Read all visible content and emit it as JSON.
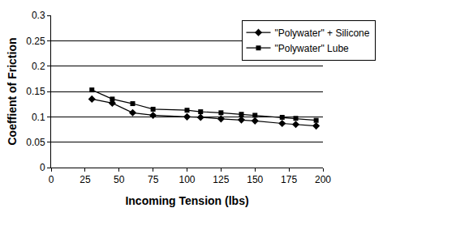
{
  "chart_data": {
    "type": "line",
    "x_label": "Incoming Tension (lbs)",
    "y_label": "Coeffient of Friction",
    "x": [
      30,
      45,
      60,
      75,
      100,
      110,
      125,
      140,
      150,
      170,
      180,
      195
    ],
    "series": [
      {
        "name": "\"Polywater\" + Silicone",
        "color": "#000000",
        "marker": "diamond",
        "line_style": "solid",
        "values": [
          0.135,
          0.127,
          0.108,
          0.103,
          0.1,
          0.099,
          0.096,
          0.094,
          0.092,
          0.087,
          0.085,
          0.082
        ]
      },
      {
        "name": "\"Polywater\" Lube",
        "color": "#000000",
        "marker": "square",
        "line_style": "solid",
        "values": [
          0.153,
          0.135,
          0.126,
          0.115,
          0.113,
          0.11,
          0.108,
          0.105,
          0.103,
          0.099,
          0.097,
          0.093
        ]
      }
    ],
    "xlim": [
      0,
      200
    ],
    "xticks": [
      0,
      25,
      50,
      75,
      100,
      125,
      150,
      175,
      200
    ],
    "ylim": [
      0,
      0.3
    ],
    "yticks": [
      0,
      0.05,
      0.1,
      0.15,
      0.2,
      0.25,
      0.3
    ],
    "grid": true,
    "legend": "top right"
  }
}
